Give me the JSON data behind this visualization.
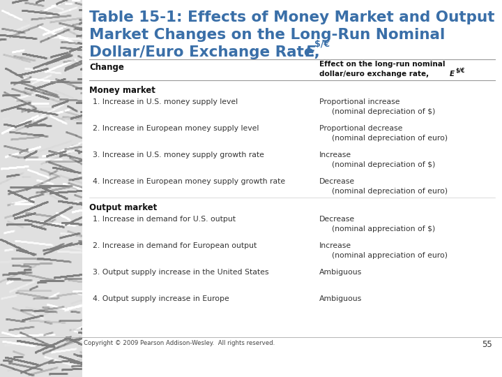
{
  "title_line1": "Table 15-1: Effects of Money Market and Output",
  "title_line2": "Market Changes on the Long-Run Nominal",
  "title_line3": "Dollar/Euro Exchange Rate, ",
  "title_italic": "E",
  "title_subscript": "$/€",
  "title_color": "#3a6fa8",
  "marble_color": "#c8c8c8",
  "white_bg": "#ffffff",
  "col1_header": "Change",
  "col2_header_line1": "Effect on the long-run nominal",
  "col2_header_line2": "dollar/euro exchange rate, ",
  "col2_header_italic": "E",
  "col2_header_subscript": "$/€",
  "section1_label": "Money market",
  "section2_label": "Output market",
  "rows_money": [
    {
      "change": "1. Increase in U.S. money supply level",
      "effect1": "Proportional increase",
      "effect2": "(nominal depreciation of $)"
    },
    {
      "change": "2. Increase in European money supply level",
      "effect1": "Proportional decrease",
      "effect2": "(nominal depreciation of euro)"
    },
    {
      "change": "3. Increase in U.S. money supply growth rate",
      "effect1": "Increase",
      "effect2": "(nominal depreciation of $)"
    },
    {
      "change": "4. Increase in European money supply growth rate",
      "effect1": "Decrease",
      "effect2": "(nominal depreciation of euro)"
    }
  ],
  "rows_output": [
    {
      "change": "1. Increase in demand for U.S. output",
      "effect1": "Decrease",
      "effect2": "(nominal appreciation of $)"
    },
    {
      "change": "2. Increase in demand for European output",
      "effect1": "Increase",
      "effect2": "(nominal appreciation of euro)"
    },
    {
      "change": "3. Output supply increase in the United States",
      "effect1": "Ambiguous",
      "effect2": ""
    },
    {
      "change": "4. Output supply increase in Europe",
      "effect1": "Ambiguous",
      "effect2": ""
    }
  ],
  "copyright": "Copyright © 2009 Pearson Addison-Wesley.  All rights reserved.",
  "page_number": "55",
  "text_color": "#333333",
  "bold_color": "#111111",
  "line_color": "#999999"
}
